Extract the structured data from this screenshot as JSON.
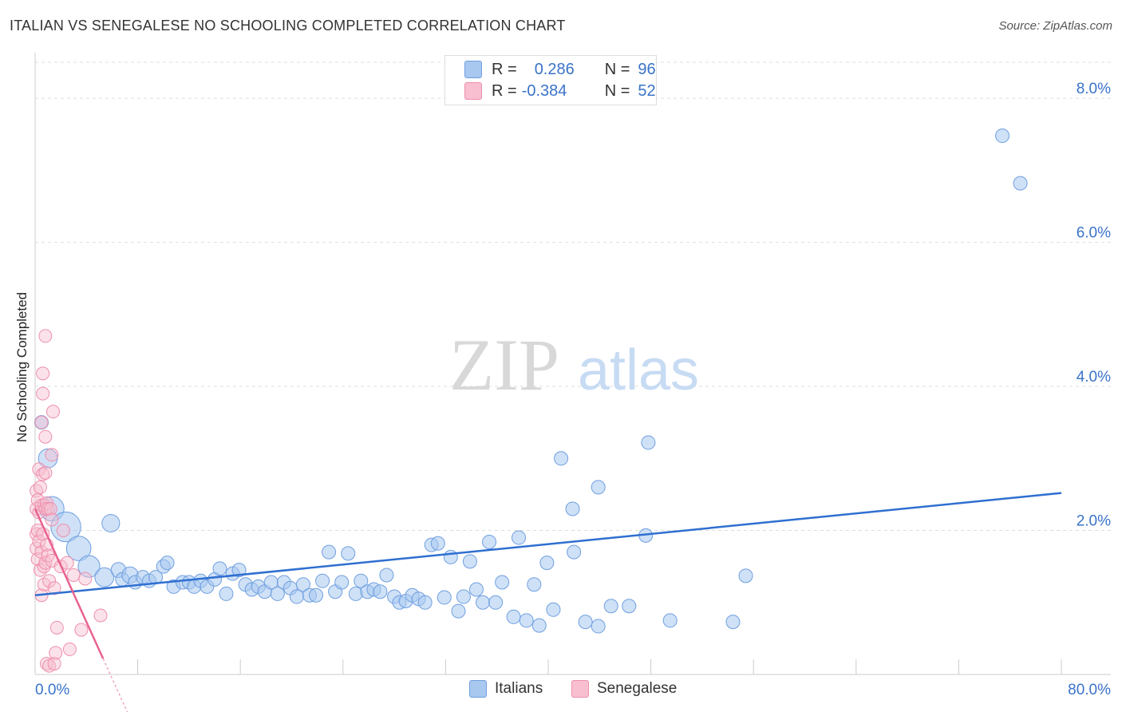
{
  "header": {
    "title": "ITALIAN VS SENEGALESE NO SCHOOLING COMPLETED CORRELATION CHART",
    "source": "Source: ZipAtlas.com"
  },
  "watermark": {
    "zip": "ZIP",
    "atlas": "atlas"
  },
  "legend": {
    "italians": {
      "r_label": "R =",
      "r_value": "0.286",
      "n_label": "N =",
      "n_value": "96"
    },
    "senegalese": {
      "r_label": "R =",
      "r_value": "-0.384",
      "n_label": "N =",
      "n_value": "52"
    }
  },
  "bottom_legend": {
    "italians": "Italians",
    "senegalese": "Senegalese"
  },
  "colors": {
    "italians_fill": "#a8c8f0",
    "italians_stroke": "#6f9fe0",
    "italians_line": "#2f6fd0",
    "senegalese_fill": "#f7bfd0",
    "senegalese_stroke": "#ee8fac",
    "senegalese_line": "#e8628f",
    "tick_text": "#3a73c9",
    "grid": "#dddddd"
  },
  "chart_data": {
    "type": "scatter",
    "title": "ITALIAN VS SENEGALESE NO SCHOOLING COMPLETED CORRELATION CHART",
    "xlabel": "",
    "ylabel": "No Schooling Completed",
    "xlim": [
      0,
      80
    ],
    "ylim": [
      0,
      8.5
    ],
    "x_tick_labels": [
      "0.0%",
      "80.0%"
    ],
    "y_ticks": [
      2,
      4,
      6,
      8
    ],
    "y_tick_labels": [
      "2.0%",
      "4.0%",
      "6.0%",
      "8.0%"
    ],
    "grid": true,
    "series": [
      {
        "name": "Italians",
        "r": 0.286,
        "n": 96,
        "trend": {
          "x": [
            0,
            80
          ],
          "y": [
            1.1,
            2.52
          ]
        },
        "points": [
          [
            0.5,
            3.5,
            1
          ],
          [
            1.0,
            3.0,
            1.4
          ],
          [
            1.3,
            2.3,
            1.8
          ],
          [
            2.4,
            2.05,
            2.2
          ],
          [
            3.4,
            1.75,
            1.8
          ],
          [
            4.2,
            1.5,
            1.6
          ],
          [
            5.4,
            1.35,
            1.4
          ],
          [
            5.9,
            2.1,
            1.3
          ],
          [
            6.5,
            1.45,
            1.1
          ],
          [
            6.8,
            1.32,
            1
          ],
          [
            7.4,
            1.38,
            1.2
          ],
          [
            7.8,
            1.28,
            1
          ],
          [
            8.4,
            1.35,
            1
          ],
          [
            8.9,
            1.3,
            1
          ],
          [
            9.4,
            1.35,
            1
          ],
          [
            10.0,
            1.5,
            1
          ],
          [
            10.3,
            1.55,
            1
          ],
          [
            10.8,
            1.22,
            1
          ],
          [
            11.5,
            1.28,
            1
          ],
          [
            12.0,
            1.28,
            1
          ],
          [
            12.4,
            1.22,
            1
          ],
          [
            12.9,
            1.3,
            1
          ],
          [
            13.4,
            1.22,
            1
          ],
          [
            14.0,
            1.32,
            1
          ],
          [
            14.4,
            1.47,
            1
          ],
          [
            14.9,
            1.12,
            1
          ],
          [
            15.4,
            1.4,
            1
          ],
          [
            15.9,
            1.45,
            1
          ],
          [
            16.4,
            1.25,
            1
          ],
          [
            16.9,
            1.18,
            1
          ],
          [
            17.4,
            1.22,
            1
          ],
          [
            17.9,
            1.15,
            1
          ],
          [
            18.4,
            1.28,
            1
          ],
          [
            18.9,
            1.12,
            1
          ],
          [
            19.4,
            1.28,
            1
          ],
          [
            19.9,
            1.2,
            1
          ],
          [
            20.4,
            1.08,
            1
          ],
          [
            20.9,
            1.25,
            1
          ],
          [
            21.4,
            1.1,
            1
          ],
          [
            21.9,
            1.1,
            1
          ],
          [
            22.4,
            1.3,
            1
          ],
          [
            22.9,
            1.7,
            1
          ],
          [
            23.4,
            1.15,
            1
          ],
          [
            23.9,
            1.28,
            1
          ],
          [
            24.4,
            1.68,
            1
          ],
          [
            25.0,
            1.12,
            1
          ],
          [
            25.4,
            1.3,
            1
          ],
          [
            25.9,
            1.15,
            1
          ],
          [
            26.4,
            1.18,
            1
          ],
          [
            26.9,
            1.15,
            1
          ],
          [
            27.4,
            1.38,
            1
          ],
          [
            28.0,
            1.08,
            1
          ],
          [
            28.4,
            1.0,
            1
          ],
          [
            28.9,
            1.02,
            1
          ],
          [
            29.4,
            1.1,
            1
          ],
          [
            29.9,
            1.05,
            1
          ],
          [
            30.4,
            1.0,
            1
          ],
          [
            30.9,
            1.8,
            1
          ],
          [
            31.4,
            1.82,
            1
          ],
          [
            31.9,
            1.07,
            1
          ],
          [
            32.4,
            1.63,
            1
          ],
          [
            33.0,
            0.88,
            1
          ],
          [
            33.4,
            1.08,
            1
          ],
          [
            33.9,
            1.57,
            1
          ],
          [
            34.4,
            1.18,
            1
          ],
          [
            34.9,
            1.0,
            1
          ],
          [
            35.4,
            1.84,
            1
          ],
          [
            35.9,
            1.0,
            1
          ],
          [
            36.4,
            1.28,
            1
          ],
          [
            37.3,
            0.8,
            1
          ],
          [
            37.7,
            1.9,
            1
          ],
          [
            38.3,
            0.75,
            1
          ],
          [
            38.9,
            1.25,
            1
          ],
          [
            39.3,
            0.68,
            1
          ],
          [
            39.9,
            1.55,
            1
          ],
          [
            40.4,
            0.9,
            1
          ],
          [
            41.0,
            3.0,
            1
          ],
          [
            41.9,
            2.3,
            1
          ],
          [
            42.0,
            1.7,
            1
          ],
          [
            42.9,
            0.73,
            1
          ],
          [
            43.9,
            0.67,
            1
          ],
          [
            43.9,
            2.6,
            1
          ],
          [
            44.9,
            0.95,
            1
          ],
          [
            46.3,
            0.95,
            1
          ],
          [
            47.6,
            1.93,
            1
          ],
          [
            47.8,
            3.22,
            1
          ],
          [
            49.5,
            0.75,
            1
          ],
          [
            54.4,
            0.73,
            1
          ],
          [
            55.4,
            1.37,
            1
          ],
          [
            75.4,
            7.48,
            1
          ],
          [
            76.8,
            6.82,
            1
          ]
        ]
      },
      {
        "name": "Senegalese",
        "r": -0.384,
        "n": 52,
        "trend": {
          "x": [
            0,
            5.3
          ],
          "y": [
            2.3,
            0.22
          ]
        },
        "points": [
          [
            0.1,
            2.55
          ],
          [
            0.1,
            2.3
          ],
          [
            0.1,
            1.95
          ],
          [
            0.1,
            1.75
          ],
          [
            0.2,
            2.42
          ],
          [
            0.2,
            2.0
          ],
          [
            0.2,
            1.6
          ],
          [
            0.3,
            2.85
          ],
          [
            0.3,
            2.25
          ],
          [
            0.3,
            1.85
          ],
          [
            0.4,
            2.6
          ],
          [
            0.4,
            1.45
          ],
          [
            0.5,
            3.5
          ],
          [
            0.5,
            2.35
          ],
          [
            0.5,
            1.7
          ],
          [
            0.5,
            1.1
          ],
          [
            0.6,
            2.78
          ],
          [
            0.6,
            3.9
          ],
          [
            0.6,
            4.18
          ],
          [
            0.6,
            1.95
          ],
          [
            0.7,
            2.35
          ],
          [
            0.7,
            1.5
          ],
          [
            0.7,
            1.25
          ],
          [
            0.8,
            4.7
          ],
          [
            0.8,
            2.8
          ],
          [
            0.8,
            3.3
          ],
          [
            0.8,
            2.3
          ],
          [
            0.8,
            1.55
          ],
          [
            0.9,
            2.38
          ],
          [
            0.9,
            1.8
          ],
          [
            0.9,
            0.15
          ],
          [
            1.0,
            2.3
          ],
          [
            1.0,
            1.65
          ],
          [
            1.1,
            1.3
          ],
          [
            1.1,
            0.12
          ],
          [
            1.2,
            2.3
          ],
          [
            1.3,
            3.05
          ],
          [
            1.3,
            2.15
          ],
          [
            1.3,
            1.58
          ],
          [
            1.4,
            3.65
          ],
          [
            1.5,
            1.2
          ],
          [
            1.5,
            0.15
          ],
          [
            1.6,
            0.3
          ],
          [
            1.7,
            0.65
          ],
          [
            2.0,
            1.5
          ],
          [
            2.2,
            2.0
          ],
          [
            2.5,
            1.55
          ],
          [
            2.7,
            0.35
          ],
          [
            3.0,
            1.38
          ],
          [
            3.6,
            0.62
          ],
          [
            3.9,
            1.33
          ],
          [
            5.1,
            0.82
          ]
        ]
      }
    ]
  }
}
